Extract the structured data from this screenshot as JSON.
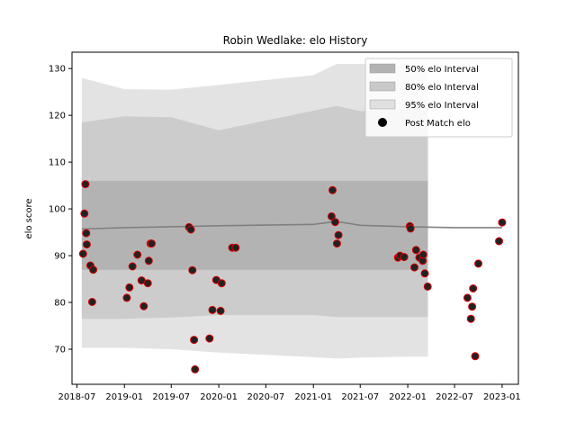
{
  "chart_data": {
    "type": "scatter",
    "title": "Robin Wedlake: elo History",
    "xlabel": "",
    "ylabel": "elo score",
    "x_tick_labels": [
      "2018-07",
      "2019-01",
      "2019-07",
      "2020-01",
      "2020-07",
      "2021-01",
      "2021-07",
      "2022-01",
      "2022-07",
      "2023-01"
    ],
    "x_ticks": [
      "2018-07-01",
      "2019-01-01",
      "2019-07-01",
      "2020-01-01",
      "2020-07-01",
      "2021-01-01",
      "2021-07-01",
      "2022-01-01",
      "2022-07-01",
      "2023-01-01"
    ],
    "y_ticks": [
      70,
      80,
      90,
      100,
      110,
      120,
      130
    ],
    "xlim": [
      "2018-06-12",
      "2023-03-05"
    ],
    "ylim": [
      62.5,
      133.5
    ],
    "grid": false,
    "legend_position": "top-right",
    "legend": [
      {
        "label": "50% elo Interval",
        "color": "#b3b3b3"
      },
      {
        "label": "80% elo Interval",
        "color": "#c9c9c9"
      },
      {
        "label": "95% elo Interval",
        "color": "#e0e0e0"
      },
      {
        "label": "Post Match elo",
        "color": "#000000"
      }
    ],
    "colors": {
      "band50": "#b3b3b3",
      "band80": "#cccccc",
      "band95": "#e3e3e3",
      "mean_line": "#808080",
      "marker_fill": "#222222",
      "marker_edge": "#dd0000"
    },
    "mean_line": {
      "x": [
        "2018-07-20",
        "2019-01-01",
        "2019-07-01",
        "2020-01-01",
        "2021-01-01",
        "2021-04-01",
        "2021-07-01",
        "2022-01-01",
        "2022-07-01",
        "2023-01-01"
      ],
      "y": [
        95.7,
        96.0,
        96.2,
        96.4,
        96.7,
        97.3,
        96.5,
        96.2,
        96.0,
        96.0
      ]
    },
    "band_50": {
      "x": [
        "2018-07-20",
        "2022-03-20"
      ],
      "lower": [
        87.0,
        87.0
      ],
      "upper": [
        106.0,
        106.0
      ]
    },
    "band_80": {
      "x": [
        "2018-07-20",
        "2019-01-01",
        "2019-07-01",
        "2020-01-01",
        "2021-01-01",
        "2021-04-01",
        "2021-07-01",
        "2022-01-01",
        "2022-03-20"
      ],
      "lower": [
        76.5,
        76.5,
        76.8,
        77.3,
        77.3,
        76.9,
        76.9,
        76.9,
        76.9
      ],
      "upper": [
        118.5,
        119.8,
        119.6,
        116.8,
        121.0,
        122.0,
        120.9,
        121.4,
        121.5
      ]
    },
    "band_95": {
      "x": [
        "2018-07-20",
        "2019-01-01",
        "2019-07-01",
        "2020-01-01",
        "2021-01-01",
        "2021-04-01",
        "2021-07-01",
        "2022-01-01",
        "2022-03-20"
      ],
      "lower": [
        70.3,
        70.3,
        70.0,
        69.3,
        68.3,
        68.0,
        68.2,
        68.4,
        68.4
      ],
      "upper": [
        128.0,
        125.6,
        125.5,
        126.5,
        128.6,
        131.0,
        131.0,
        130.5,
        130.5
      ]
    },
    "series": [
      {
        "name": "Post Match elo",
        "x": [
          "2018-07-25",
          "2018-07-30",
          "2018-08-03",
          "2018-08-06",
          "2018-08-08",
          "2018-08-22",
          "2018-08-29",
          "2018-09-02",
          "2019-01-10",
          "2019-01-20",
          "2019-02-01",
          "2019-02-20",
          "2019-03-08",
          "2019-03-17",
          "2019-04-01",
          "2019-04-05",
          "2019-04-12",
          "2019-04-16",
          "2019-09-08",
          "2019-09-15",
          "2019-09-21",
          "2019-09-27",
          "2019-10-01",
          "2019-11-26",
          "2019-12-07",
          "2019-12-22",
          "2020-01-08",
          "2020-01-12",
          "2020-02-22",
          "2020-03-06",
          "2021-03-12",
          "2021-03-16",
          "2021-03-26",
          "2021-04-02",
          "2021-04-08",
          "2021-11-24",
          "2021-12-02",
          "2021-12-18",
          "2022-01-09",
          "2022-01-12",
          "2022-01-27",
          "2022-02-02",
          "2022-02-15",
          "2022-02-28",
          "2022-03-02",
          "2022-03-08",
          "2022-03-19",
          "2022-08-20",
          "2022-09-02",
          "2022-09-07",
          "2022-09-11",
          "2022-09-19",
          "2022-10-01",
          "2022-12-20",
          "2023-01-01"
        ],
        "y": [
          90.4,
          99.0,
          105.3,
          94.8,
          92.4,
          87.9,
          80.1,
          87.0,
          81.0,
          83.2,
          87.7,
          90.2,
          84.7,
          79.2,
          84.1,
          88.9,
          92.6,
          92.6,
          96.1,
          95.6,
          86.9,
          72.0,
          65.7,
          72.3,
          78.4,
          84.8,
          78.2,
          84.1,
          91.7,
          91.7,
          98.4,
          104.0,
          97.2,
          92.6,
          94.4,
          89.6,
          90.0,
          89.7,
          96.3,
          95.8,
          87.5,
          91.2,
          89.6,
          88.9,
          90.2,
          86.2,
          83.4,
          81.0,
          76.5,
          79.1,
          83.0,
          68.5,
          88.3,
          93.1,
          97.1
        ]
      }
    ]
  }
}
